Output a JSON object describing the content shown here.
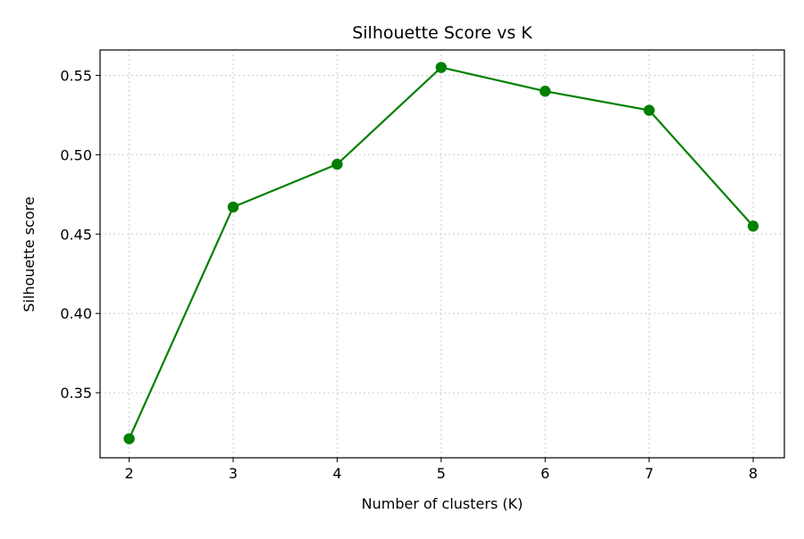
{
  "chart_data": {
    "type": "line",
    "title": "Silhouette Score vs K",
    "xlabel": "Number of clusters (K)",
    "ylabel": "Silhouette score",
    "x": [
      2,
      3,
      4,
      5,
      6,
      7,
      8
    ],
    "series": [
      {
        "values": [
          0.321,
          0.467,
          0.494,
          0.555,
          0.54,
          0.528,
          0.455
        ],
        "color": "#008000",
        "marker": "circle"
      }
    ],
    "xticks": [
      "2",
      "3",
      "4",
      "5",
      "6",
      "7",
      "8"
    ],
    "yticks": [
      "0.35",
      "0.40",
      "0.45",
      "0.50",
      "0.55"
    ],
    "ytick_values": [
      0.35,
      0.4,
      0.45,
      0.5,
      0.55
    ],
    "xlim": [
      1.72,
      8.3
    ],
    "ylim": [
      0.309,
      0.566
    ],
    "grid": true,
    "grid_style": "dotted",
    "legend": "none"
  }
}
